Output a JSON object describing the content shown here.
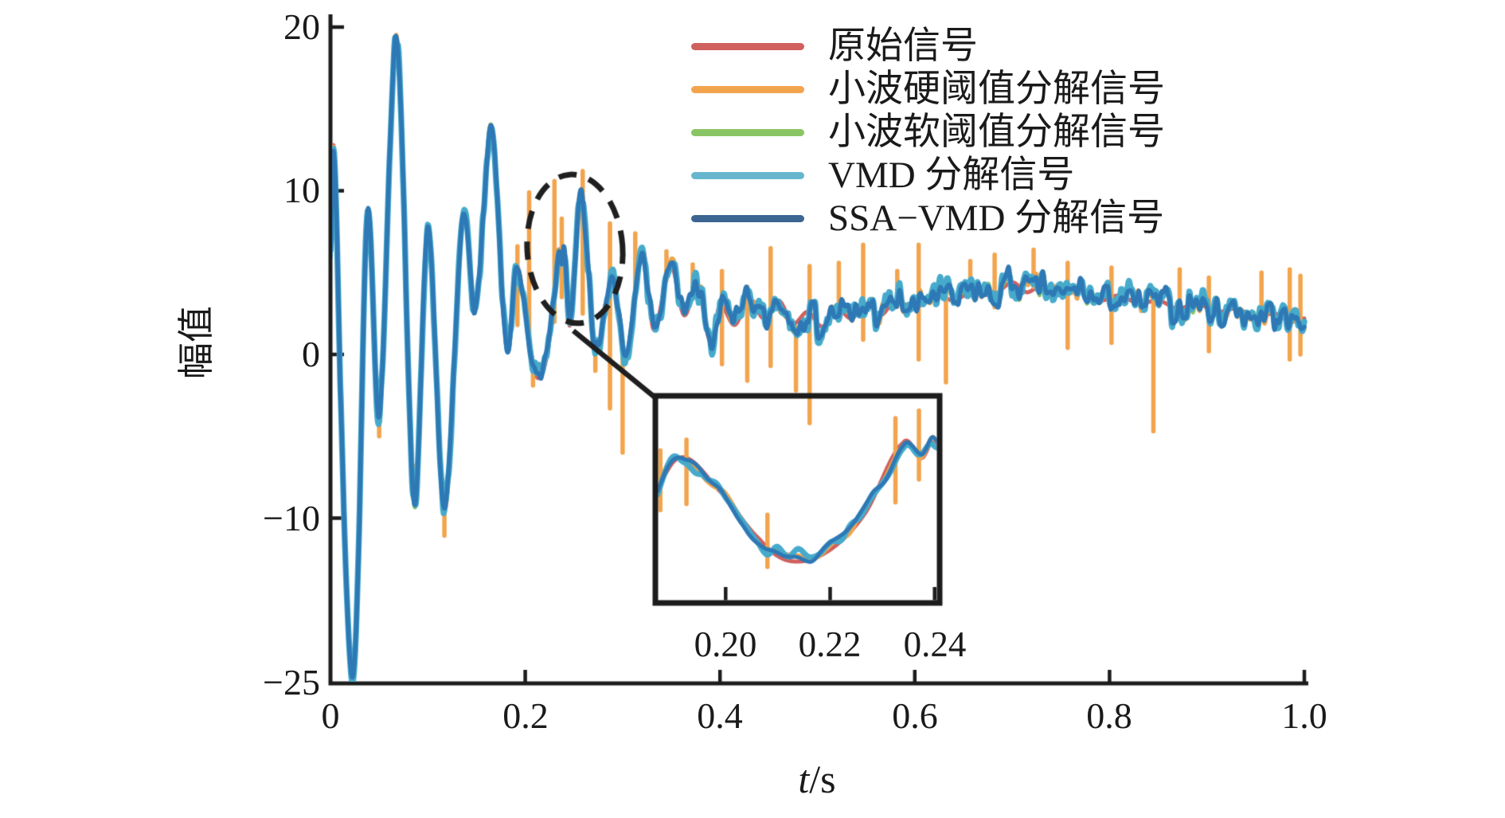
{
  "legend": {
    "items": [
      {
        "label": "原始信号",
        "color": "#d0605e"
      },
      {
        "label": "小波硬阈值分解信号",
        "color": "#f2a44d"
      },
      {
        "label": "小波软阈值分解信号",
        "color": "#8ac563"
      },
      {
        "label": "VMD 分解信号",
        "color": "#67b6ce"
      },
      {
        "label": "SSA−VMD 分解信号",
        "color": "#3c6591"
      }
    ]
  },
  "chart_data": {
    "type": "line",
    "title": "",
    "xlabel_var": "t",
    "xlabel_unit": "/s",
    "ylabel": "幅值",
    "xlim": [
      0,
      1
    ],
    "ylim": [
      -25,
      20
    ],
    "grid": false,
    "legend_position": "upper right",
    "xticks": [
      0,
      0.2,
      0.4,
      0.6,
      0.8,
      1.0
    ],
    "xtick_labels": [
      "0",
      "0.2",
      "0.4",
      "0.6",
      "0.8",
      "1.0"
    ],
    "yticks": [
      20,
      10,
      0,
      -10,
      -25
    ],
    "ytick_labels": [
      "20",
      "10",
      "0",
      "−10",
      "−25"
    ],
    "series": [
      {
        "label": "原始信号",
        "plot_color": "#d0605e",
        "width": 5.0,
        "wig": 0,
        "own_amp": 0,
        "own_grid": 0.004,
        "seed": 3,
        "spikes": false
      },
      {
        "label": "小波硬阈值分解信号",
        "plot_color": "#f2a44d",
        "width": 5.0,
        "wig": 0.92,
        "own_amp": 0.22,
        "own_grid": 0.0026,
        "seed": 11,
        "spikes": true
      },
      {
        "label": "小波软阈值分解信号",
        "plot_color": "#8ac563",
        "width": 5.0,
        "wig": 0.95,
        "own_amp": 0.18,
        "own_grid": 0.003,
        "seed": 13,
        "spikes": false
      },
      {
        "label": "VMD 分解信号",
        "plot_color": "#46aacb",
        "width": 7.5,
        "wig": 1.0,
        "own_amp": 0.5,
        "own_grid": 0.002,
        "seed": 17,
        "spikes": false
      },
      {
        "label": "SSA−VMD 分解信号",
        "plot_color": "#2d78b5",
        "width": 5.5,
        "wig": 1.0,
        "own_amp": 0.28,
        "own_grid": 0.003,
        "seed": 23,
        "spikes": false
      }
    ],
    "base_keypoints": [
      [
        0.0,
        6.3
      ],
      [
        0.0035,
        12.6
      ],
      [
        0.01,
        -2.0
      ],
      [
        0.023,
        -24.6
      ],
      [
        0.0375,
        8.3
      ],
      [
        0.05,
        -3.6
      ],
      [
        0.068,
        19.3
      ],
      [
        0.086,
        -9.0
      ],
      [
        0.1,
        7.6
      ],
      [
        0.117,
        -9.5
      ],
      [
        0.136,
        8.4
      ],
      [
        0.149,
        2.8
      ],
      [
        0.165,
        13.6
      ],
      [
        0.181,
        0.9
      ],
      [
        0.191,
        5.3
      ],
      [
        0.199,
        3.1
      ],
      [
        0.2065,
        0.0
      ],
      [
        0.212,
        -1.4
      ],
      [
        0.219,
        -0.9
      ],
      [
        0.2265,
        1.6
      ],
      [
        0.234,
        6.3
      ],
      [
        0.2375,
        5.3
      ],
      [
        0.24,
        6.2
      ],
      [
        0.246,
        1.8
      ],
      [
        0.257,
        9.4
      ],
      [
        0.272,
        0.6
      ],
      [
        0.29,
        4.3
      ],
      [
        0.304,
        -0.2
      ],
      [
        0.32,
        6.5
      ],
      [
        0.332,
        1.5
      ],
      [
        0.349,
        5.5
      ],
      [
        0.363,
        2.4
      ],
      [
        0.377,
        4.2
      ],
      [
        0.39,
        0.8
      ],
      [
        0.4,
        3.0
      ],
      [
        0.415,
        1.8
      ],
      [
        0.43,
        3.4
      ],
      [
        0.445,
        2.2
      ],
      [
        0.46,
        3.3
      ],
      [
        0.475,
        1.9
      ],
      [
        0.49,
        2.6
      ],
      [
        0.505,
        1.7
      ],
      [
        0.52,
        2.8
      ],
      [
        0.535,
        2.2
      ],
      [
        0.55,
        3.1
      ],
      [
        0.565,
        2.4
      ],
      [
        0.58,
        3.3
      ],
      [
        0.6,
        2.8
      ],
      [
        0.62,
        3.7
      ],
      [
        0.64,
        3.3
      ],
      [
        0.66,
        3.9
      ],
      [
        0.68,
        3.6
      ],
      [
        0.7,
        4.4
      ],
      [
        0.715,
        3.8
      ],
      [
        0.73,
        4.2
      ],
      [
        0.75,
        3.6
      ],
      [
        0.77,
        3.9
      ],
      [
        0.79,
        3.3
      ],
      [
        0.81,
        3.6
      ],
      [
        0.83,
        3.1
      ],
      [
        0.85,
        3.3
      ],
      [
        0.87,
        2.8
      ],
      [
        0.89,
        3.1
      ],
      [
        0.91,
        2.6
      ],
      [
        0.93,
        2.8
      ],
      [
        0.95,
        2.3
      ],
      [
        0.97,
        2.5
      ],
      [
        0.985,
        2.0
      ],
      [
        1.0,
        2.2
      ]
    ],
    "noise": {
      "shared_seed": 7,
      "shared_grid": 0.0035,
      "envelope": [
        [
          0,
          0.13
        ],
        [
          0.14,
          0.13
        ],
        [
          0.17,
          0.5
        ],
        [
          0.32,
          0.5
        ],
        [
          0.4,
          0.88
        ],
        [
          1.0,
          0.85
        ]
      ]
    },
    "spikes": [
      [
        0.05,
        null,
        -5.0
      ],
      [
        0.087,
        null,
        -6.8
      ],
      [
        0.117,
        null,
        -11.6
      ],
      [
        0.192,
        6.6,
        1.8
      ],
      [
        0.204,
        9.9,
        null
      ],
      [
        0.208,
        null,
        -1.9
      ],
      [
        0.23,
        10.6,
        2.0
      ],
      [
        0.2375,
        8.3,
        3.5
      ],
      [
        0.259,
        11.2,
        2.5
      ],
      [
        0.272,
        null,
        -1.0
      ],
      [
        0.287,
        8.0,
        -3.3
      ],
      [
        0.3,
        null,
        -6.0
      ],
      [
        0.313,
        7.4,
        null
      ],
      [
        0.345,
        6.3,
        null
      ],
      [
        0.372,
        5.5,
        null
      ],
      [
        0.402,
        5.1,
        -0.6
      ],
      [
        0.428,
        null,
        -1.6
      ],
      [
        0.452,
        6.5,
        -0.7
      ],
      [
        0.478,
        null,
        -2.2
      ],
      [
        0.492,
        5.4,
        -4.2
      ],
      [
        0.522,
        5.6,
        null
      ],
      [
        0.547,
        6.7,
        0.9
      ],
      [
        0.582,
        5.1,
        null
      ],
      [
        0.604,
        6.7,
        -0.3
      ],
      [
        0.632,
        null,
        -1.7
      ],
      [
        0.657,
        5.7,
        null
      ],
      [
        0.682,
        6.1,
        null
      ],
      [
        0.722,
        6.4,
        null
      ],
      [
        0.757,
        5.6,
        0.4
      ],
      [
        0.802,
        5.3,
        0.7
      ],
      [
        0.845,
        null,
        -4.7
      ],
      [
        0.872,
        5.2,
        null
      ],
      [
        0.902,
        4.7,
        0.2
      ],
      [
        0.956,
        5.0,
        null
      ],
      [
        0.985,
        5.2,
        -0.3
      ],
      [
        0.996,
        4.8,
        0.0
      ]
    ],
    "inset": {
      "xlim": [
        0.187,
        0.2405
      ],
      "ylim": [
        -4,
        9.2
      ],
      "xticks": [
        0.2,
        0.22,
        0.24
      ],
      "xtick_labels": [
        "0.20",
        "0.22",
        "0.24"
      ],
      "spikes": [
        [
          0.1875,
          5.8,
          1.9
        ],
        [
          0.1925,
          6.5,
          2.3
        ],
        [
          0.208,
          1.6,
          -1.8
        ],
        [
          0.2325,
          7.9,
          2.4
        ],
        [
          0.237,
          8.4,
          3.9
        ]
      ]
    },
    "annotation": {
      "ellipse": {
        "t": 0.251,
        "v": 6.45,
        "rt": 0.049,
        "rv": 4.55,
        "tilt_deg": -4
      },
      "connector": {
        "t1": 0.2494,
        "v1": 1.45,
        "t2": 0.3328,
        "v2": -2.6
      }
    }
  }
}
